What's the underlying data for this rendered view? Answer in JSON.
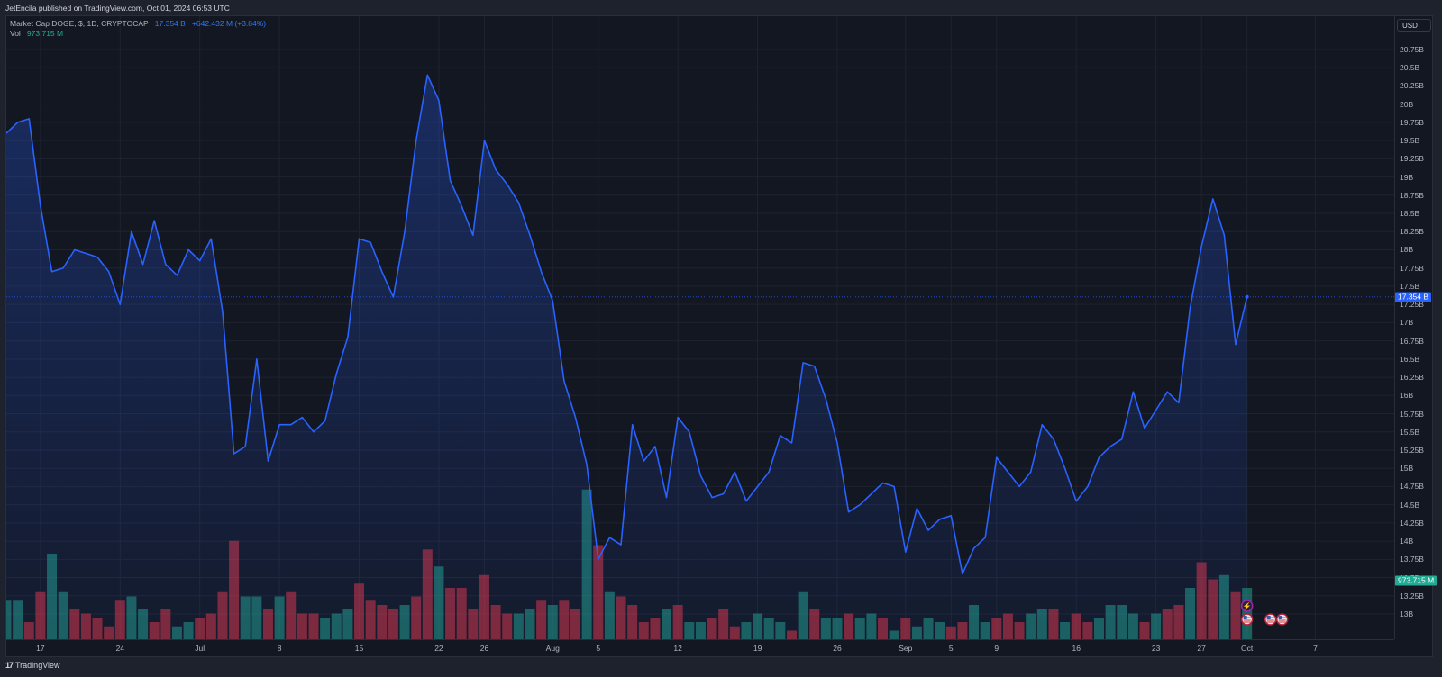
{
  "header": {
    "published_line": "JetEncila published on TradingView.com, Oct 01, 2024 06:53 UTC"
  },
  "legend": {
    "symbol": "Market Cap DOGE, $, 1D, CRYPTOCAP",
    "last_value": "17.354 B",
    "change": "+642.432 M (+3.84%)",
    "vol_label": "Vol",
    "vol_value": "973.715 M"
  },
  "axis_right": {
    "currency_button": "USD",
    "last_price_tag": "17.354 B",
    "last_volume_tag": "973.715 M"
  },
  "footer": {
    "brand": "TradingView"
  },
  "colors": {
    "line": "#2962ff",
    "up_volume": "#22ab94",
    "down_volume": "#f23645",
    "background": "#131722",
    "price_tag": "#2962ff",
    "volume_tag": "#22ab94"
  },
  "chart_data": {
    "type": "area",
    "title": "Market Cap DOGE, $, 1D, CRYPTOCAP",
    "xlabel": "",
    "ylabel": "USD",
    "ylim": [
      12.75,
      20.9
    ],
    "grid": true,
    "legend_position": "top-left",
    "y_ticks": [
      "20.75B",
      "20.5B",
      "20.25B",
      "20B",
      "19.75B",
      "19.5B",
      "19.25B",
      "19B",
      "18.75B",
      "18.5B",
      "18.25B",
      "18B",
      "17.75B",
      "17.5B",
      "17.25B",
      "17B",
      "16.75B",
      "16.5B",
      "16.25B",
      "16B",
      "15.75B",
      "15.5B",
      "15.25B",
      "15B",
      "14.75B",
      "14.5B",
      "14.25B",
      "14B",
      "13.75B",
      "13.5B",
      "13.25B",
      "13B"
    ],
    "x_ticks": [
      {
        "label": "17",
        "day": 3
      },
      {
        "label": "24",
        "day": 10
      },
      {
        "label": "Jul",
        "day": 17
      },
      {
        "label": "8",
        "day": 24
      },
      {
        "label": "15",
        "day": 31
      },
      {
        "label": "22",
        "day": 38
      },
      {
        "label": "26",
        "day": 42
      },
      {
        "label": "Aug",
        "day": 48
      },
      {
        "label": "5",
        "day": 52
      },
      {
        "label": "12",
        "day": 59
      },
      {
        "label": "19",
        "day": 66
      },
      {
        "label": "26",
        "day": 73
      },
      {
        "label": "Sep",
        "day": 79
      },
      {
        "label": "5",
        "day": 83
      },
      {
        "label": "9",
        "day": 87
      },
      {
        "label": "16",
        "day": 94
      },
      {
        "label": "23",
        "day": 101
      },
      {
        "label": "27",
        "day": 105
      },
      {
        "label": "Oct",
        "day": 109
      },
      {
        "label": "7",
        "day": 115
      }
    ],
    "start_date": "Jun 14",
    "end_date": "Oct 01",
    "series": [
      {
        "name": "Market Cap DOGE (B USD)",
        "values": [
          19.6,
          19.75,
          19.8,
          18.6,
          17.7,
          17.75,
          18.0,
          17.95,
          17.9,
          17.7,
          17.25,
          18.25,
          17.8,
          18.4,
          17.8,
          17.65,
          18.0,
          17.85,
          18.15,
          17.15,
          15.2,
          15.3,
          16.5,
          15.1,
          15.6,
          15.6,
          15.7,
          15.5,
          15.65,
          16.3,
          16.8,
          18.15,
          18.1,
          17.7,
          17.35,
          18.25,
          19.5,
          20.4,
          20.05,
          18.95,
          18.6,
          18.2,
          19.5,
          19.1,
          18.9,
          18.65,
          18.2,
          17.7,
          17.3,
          16.2,
          15.7,
          15.05,
          13.75,
          14.05,
          13.95,
          15.6,
          15.1,
          15.3,
          14.6,
          15.7,
          15.5,
          14.9,
          14.6,
          14.65,
          14.95,
          14.55,
          14.75,
          14.95,
          15.45,
          15.35,
          16.45,
          16.4,
          15.95,
          15.35,
          14.4,
          14.5,
          14.65,
          14.8,
          14.75,
          13.85,
          14.45,
          14.15,
          14.3,
          14.35,
          13.55,
          13.9,
          14.05,
          15.15,
          14.95,
          14.75,
          14.95,
          15.6,
          15.4,
          15.0,
          14.55,
          14.75,
          15.15,
          15.3,
          15.4,
          16.05,
          15.55,
          15.8,
          16.05,
          15.9,
          17.2,
          18.05,
          18.7,
          18.2,
          16.7,
          17.354
        ]
      },
      {
        "name": "Volume (relative height)",
        "values": [
          0.45,
          0.45,
          0.2,
          0.55,
          1.0,
          0.55,
          0.35,
          0.3,
          0.25,
          0.15,
          0.45,
          0.5,
          0.35,
          0.2,
          0.35,
          0.15,
          0.2,
          0.25,
          0.3,
          0.55,
          1.15,
          0.5,
          0.5,
          0.35,
          0.5,
          0.55,
          0.3,
          0.3,
          0.25,
          0.3,
          0.35,
          0.65,
          0.45,
          0.4,
          0.35,
          0.4,
          0.5,
          1.05,
          0.85,
          0.6,
          0.6,
          0.35,
          0.75,
          0.4,
          0.3,
          0.3,
          0.35,
          0.45,
          0.4,
          0.45,
          0.35,
          1.75,
          1.1,
          0.55,
          0.5,
          0.4,
          0.2,
          0.25,
          0.35,
          0.4,
          0.2,
          0.2,
          0.25,
          0.35,
          0.15,
          0.2,
          0.3,
          0.25,
          0.2,
          0.1,
          0.55,
          0.35,
          0.25,
          0.25,
          0.3,
          0.25,
          0.3,
          0.25,
          0.1,
          0.25,
          0.15,
          0.25,
          0.2,
          0.15,
          0.2,
          0.4,
          0.2,
          0.25,
          0.3,
          0.2,
          0.3,
          0.35,
          0.35,
          0.2,
          0.3,
          0.2,
          0.25,
          0.4,
          0.4,
          0.3,
          0.2,
          0.3,
          0.35,
          0.4,
          0.6,
          0.9,
          0.7,
          0.75,
          0.55,
          0.6
        ]
      }
    ],
    "volume_direction": "UUDDUUDDDDDUUDDUUDDDDUUDUDDDUUUDDDDUDDUDDDDDDUUDUDDUDUDDDDUDUUDDDUUUUDUDUUDUUDUDUUUDDUUDDDUUDUDDUUUUDUDDUDDUDUDU"
  }
}
